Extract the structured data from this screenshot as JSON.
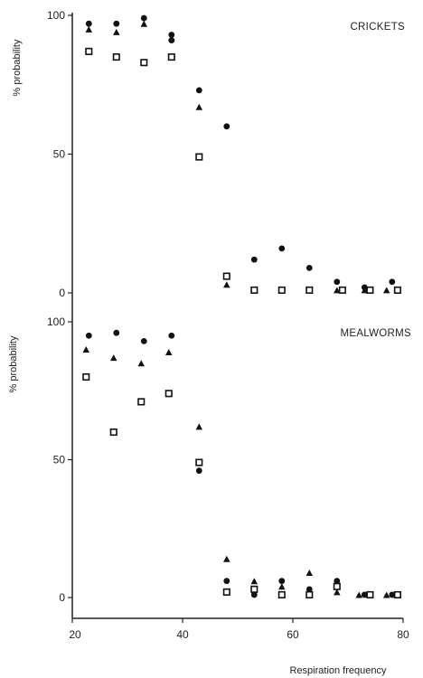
{
  "chart_data": [
    {
      "type": "scatter",
      "title": "CRICKETS",
      "ylabel": "% probability",
      "xlabel": "",
      "xlim": [
        20,
        80
      ],
      "ylim": [
        0,
        100
      ],
      "yticks": [
        "0",
        "50",
        "100"
      ],
      "xticks": [],
      "series": [
        {
          "marker": "circle",
          "x": [
            23,
            28,
            33,
            38,
            38,
            43,
            48,
            53,
            58,
            63,
            68,
            73,
            78
          ],
          "y": [
            97,
            97,
            99,
            93,
            91,
            73,
            60,
            12,
            16,
            9,
            4,
            2,
            4
          ]
        },
        {
          "marker": "triangle",
          "x": [
            23,
            28,
            33,
            38,
            43,
            48,
            53,
            58,
            63,
            68,
            73,
            77
          ],
          "y": [
            95,
            94,
            97,
            92,
            67,
            3,
            1,
            1,
            1,
            1,
            1,
            1
          ]
        },
        {
          "marker": "square",
          "x": [
            23,
            28,
            33,
            38,
            43,
            48,
            53,
            58,
            63,
            69,
            74,
            79
          ],
          "y": [
            87,
            85,
            83,
            85,
            49,
            6,
            1,
            1,
            1,
            1,
            1,
            1
          ]
        }
      ]
    },
    {
      "type": "scatter",
      "title": "MEALWORMS",
      "ylabel": "% probability",
      "xlabel": "Respiration frequency",
      "xlim": [
        20,
        80
      ],
      "ylim": [
        0,
        100
      ],
      "yticks": [
        "0",
        "50",
        "100"
      ],
      "xticks": [
        "20",
        "40",
        "60",
        "80"
      ],
      "series": [
        {
          "marker": "circle",
          "x": [
            23,
            28,
            33,
            38,
            43,
            48,
            53,
            58,
            63,
            68,
            73,
            78
          ],
          "y": [
            95,
            96,
            93,
            95,
            46,
            6,
            1,
            6,
            3,
            6,
            1,
            1
          ]
        },
        {
          "marker": "triangle",
          "x": [
            22.5,
            27.5,
            32.5,
            37.5,
            43,
            48,
            53,
            58,
            63,
            68,
            72,
            77
          ],
          "y": [
            90,
            87,
            85,
            89,
            62,
            14,
            6,
            4,
            9,
            2,
            1,
            1
          ]
        },
        {
          "marker": "square",
          "x": [
            22.5,
            27.5,
            32.5,
            37.5,
            43,
            48,
            53,
            58,
            63,
            68,
            74,
            79
          ],
          "y": [
            80,
            60,
            71,
            74,
            49,
            2,
            3,
            1,
            1,
            4,
            1,
            1
          ]
        }
      ]
    }
  ]
}
